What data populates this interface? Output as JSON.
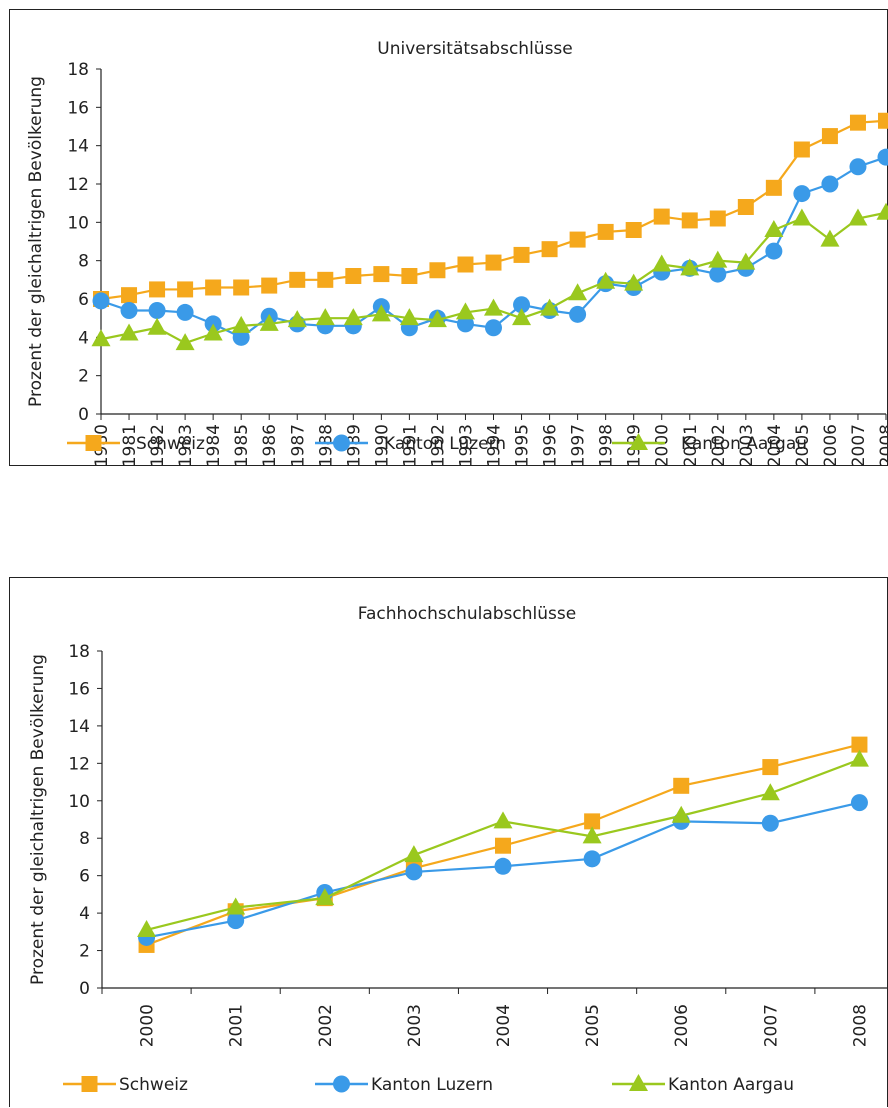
{
  "chart_data": [
    {
      "type": "line",
      "title": "Universitätsabschlüsse",
      "xlabel": "",
      "ylabel": "Prozent der gleichaltrigen Bevölkerung",
      "ylim": [
        0,
        18
      ],
      "yticks": [
        "0",
        "2",
        "4",
        "6",
        "8",
        "10",
        "12",
        "14",
        "16",
        "18"
      ],
      "categories": [
        "1980",
        "1981",
        "1982",
        "1983",
        "1984",
        "1985",
        "1986",
        "1987",
        "1988",
        "1989",
        "1990",
        "1991",
        "1992",
        "1993",
        "1994",
        "1995",
        "1996",
        "1997",
        "1998",
        "1999",
        "2000",
        "2001",
        "2002",
        "2003",
        "2004",
        "2005",
        "2006",
        "2007",
        "2008"
      ],
      "grid": false,
      "legend": "bottom",
      "series": [
        {
          "name": "Schweiz",
          "color": "#F5A81C",
          "marker": "square",
          "values": [
            6.0,
            6.2,
            6.5,
            6.5,
            6.6,
            6.6,
            6.7,
            7.0,
            7.0,
            7.2,
            7.3,
            7.2,
            7.5,
            7.8,
            7.9,
            8.3,
            8.6,
            9.1,
            9.5,
            9.6,
            10.3,
            10.1,
            10.2,
            10.8,
            11.8,
            13.8,
            14.5,
            15.2,
            15.3
          ]
        },
        {
          "name": "Kanton Luzern",
          "color": "#3A9AE8",
          "marker": "circle",
          "values": [
            5.9,
            5.4,
            5.4,
            5.3,
            4.7,
            4.0,
            5.1,
            4.7,
            4.6,
            4.6,
            5.6,
            4.5,
            5.0,
            4.7,
            4.5,
            5.7,
            5.4,
            5.2,
            6.8,
            6.6,
            7.4,
            7.6,
            7.3,
            7.6,
            8.5,
            11.5,
            12.0,
            12.9,
            13.4
          ]
        },
        {
          "name": "Kanton Aargau",
          "color": "#9AC81E",
          "marker": "triangle",
          "values": [
            3.9,
            4.2,
            4.5,
            3.7,
            4.2,
            4.6,
            4.7,
            4.9,
            5.0,
            5.0,
            5.2,
            5.0,
            4.9,
            5.3,
            5.5,
            5.0,
            5.5,
            6.3,
            6.9,
            6.8,
            7.8,
            7.6,
            8.0,
            7.9,
            9.6,
            10.2,
            9.1,
            10.2,
            10.5
          ]
        }
      ]
    },
    {
      "type": "line",
      "title": "Fachhochschulabschlüsse",
      "xlabel": "",
      "ylabel": "Prozent der gleichaltrigen Bevölkerung",
      "ylim": [
        0,
        18
      ],
      "yticks": [
        "0",
        "2",
        "4",
        "6",
        "8",
        "10",
        "12",
        "14",
        "16",
        "18"
      ],
      "categories": [
        "2000",
        "2001",
        "2002",
        "2003",
        "2004",
        "2005",
        "2006",
        "2007",
        "2008"
      ],
      "grid": false,
      "legend": "bottom",
      "series": [
        {
          "name": "Schweiz",
          "color": "#F5A81C",
          "marker": "square",
          "values": [
            2.3,
            4.1,
            4.8,
            6.4,
            7.6,
            8.9,
            10.8,
            11.8,
            13.0
          ]
        },
        {
          "name": "Kanton Luzern",
          "color": "#3A9AE8",
          "marker": "circle",
          "values": [
            2.7,
            3.6,
            5.1,
            6.2,
            6.5,
            6.9,
            8.9,
            8.8,
            9.9
          ]
        },
        {
          "name": "Kanton Aargau",
          "color": "#9AC81E",
          "marker": "triangle",
          "values": [
            3.1,
            4.3,
            4.8,
            7.1,
            8.9,
            8.1,
            9.2,
            10.4,
            12.2
          ]
        }
      ]
    }
  ]
}
